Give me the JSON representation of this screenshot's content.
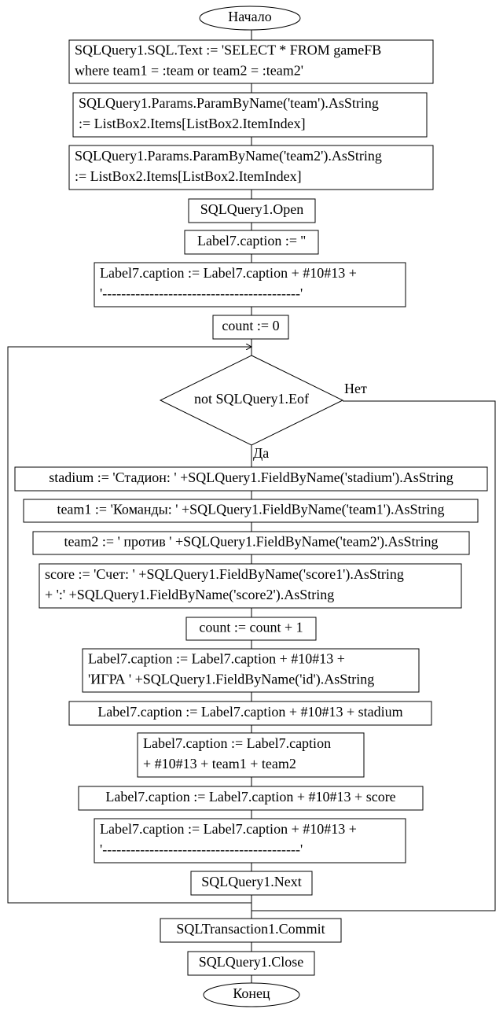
{
  "flowchart": {
    "nodes": [
      {
        "shape": "terminal",
        "lines": [
          "Начало"
        ]
      },
      {
        "shape": "process",
        "lines": [
          "SQLQuery1.SQL.Text := 'SELECT * FROM gameFB",
          "where team1 = :team or team2 = :team2'"
        ]
      },
      {
        "shape": "process",
        "lines": [
          "SQLQuery1.Params.ParamByName('team').AsString",
          ":= ListBox2.Items[ListBox2.ItemIndex]"
        ]
      },
      {
        "shape": "process",
        "lines": [
          "SQLQuery1.Params.ParamByName('team2').AsString",
          ":= ListBox2.Items[ListBox2.ItemIndex]"
        ]
      },
      {
        "shape": "process",
        "lines": [
          "SQLQuery1.Open"
        ]
      },
      {
        "shape": "process",
        "lines": [
          "Label7.caption := ''"
        ]
      },
      {
        "shape": "process",
        "lines": [
          "Label7.caption := Label7.caption + #10#13 +",
          "'------------------------------------------'"
        ]
      },
      {
        "shape": "process",
        "lines": [
          "count := 0"
        ]
      },
      {
        "shape": "decision",
        "lines": [
          "not SQLQuery1.Eof"
        ],
        "yes": "Да",
        "no": "Нет"
      },
      {
        "shape": "process",
        "lines": [
          "stadium := 'Стадион: ' +SQLQuery1.FieldByName('stadium').AsString"
        ]
      },
      {
        "shape": "process",
        "lines": [
          "team1 := 'Команды: ' +SQLQuery1.FieldByName('team1').AsString"
        ]
      },
      {
        "shape": "process",
        "lines": [
          "team2 := ' против ' +SQLQuery1.FieldByName('team2').AsString"
        ]
      },
      {
        "shape": "process",
        "lines": [
          "score := 'Счет: ' +SQLQuery1.FieldByName('score1').AsString",
          "+ ':' +SQLQuery1.FieldByName('score2').AsString"
        ]
      },
      {
        "shape": "process",
        "lines": [
          "count := count + 1"
        ]
      },
      {
        "shape": "process",
        "lines": [
          "Label7.caption := Label7.caption + #10#13 +",
          "'ИГРА ' +SQLQuery1.FieldByName('id').AsString"
        ]
      },
      {
        "shape": "process",
        "lines": [
          "Label7.caption := Label7.caption + #10#13 + stadium"
        ]
      },
      {
        "shape": "process",
        "lines": [
          "Label7.caption := Label7.caption",
          "+ #10#13 + team1 + team2"
        ]
      },
      {
        "shape": "process",
        "lines": [
          "Label7.caption := Label7.caption + #10#13 + score"
        ]
      },
      {
        "shape": "process",
        "lines": [
          "Label7.caption := Label7.caption + #10#13 +",
          "'------------------------------------------'"
        ]
      },
      {
        "shape": "process",
        "lines": [
          "SQLQuery1.Next"
        ]
      },
      {
        "shape": "process",
        "lines": [
          "SQLTransaction1.Commit"
        ]
      },
      {
        "shape": "process",
        "lines": [
          "SQLQuery1.Close"
        ]
      },
      {
        "shape": "terminal",
        "lines": [
          "Конец"
        ]
      }
    ]
  }
}
